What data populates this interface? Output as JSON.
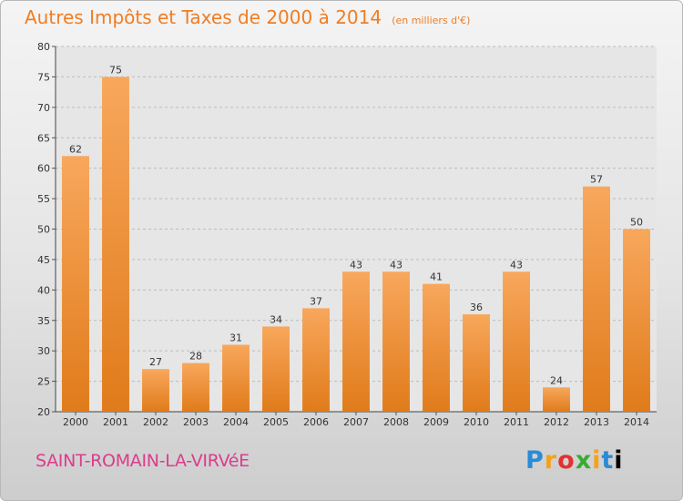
{
  "title": "Autres Impôts et Taxes de 2000 à 2014",
  "unit": "(en milliers d'€)",
  "commune": "SAINT-ROMAIN-LA-VIRVéE",
  "logo_letters": [
    "P",
    "r",
    "o",
    "x",
    "i",
    "t",
    "i"
  ],
  "colors": {
    "bar_top": "#f8a75c",
    "bar_bottom": "#e07b1a",
    "title": "#f07d22",
    "commune": "#dc3c8c"
  },
  "chart_data": {
    "type": "bar",
    "categories": [
      "2000",
      "2001",
      "2002",
      "2003",
      "2004",
      "2005",
      "2006",
      "2007",
      "2008",
      "2009",
      "2010",
      "2011",
      "2012",
      "2013",
      "2014"
    ],
    "values": [
      62,
      75,
      27,
      28,
      31,
      34,
      37,
      43,
      43,
      41,
      36,
      43,
      24,
      57,
      50
    ],
    "ylim": [
      20,
      80
    ],
    "yticks": [
      20,
      25,
      30,
      35,
      40,
      45,
      50,
      55,
      60,
      65,
      70,
      75,
      80
    ],
    "grid": "horizontal dashed",
    "data_labels": true
  }
}
